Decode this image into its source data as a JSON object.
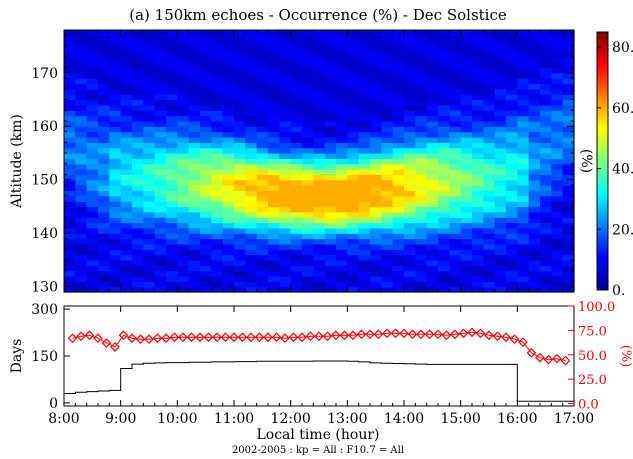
{
  "chart_data": [
    {
      "type": "heatmap",
      "title": "(a) 150km echoes - Occurrence (%) - Dec Solstice",
      "ylabel": "Altitude (km)",
      "xlim": [
        8.0,
        17.0
      ],
      "ylim": [
        129,
        178
      ],
      "yticks": [
        "130",
        "140",
        "150",
        "160",
        "170"
      ],
      "colorbar": {
        "label": "(%)",
        "range": [
          0,
          85
        ],
        "tick_values": [
          0,
          20,
          40,
          60,
          80
        ],
        "tick_labels": [
          "0.",
          "20.",
          "40.",
          "60.",
          "80."
        ],
        "colormap": "jet"
      },
      "cells": {
        "x_start": 8.0,
        "x_step": 0.2,
        "y_start": 129,
        "y_step": 1,
        "peak_hour": 12.9,
        "peak_altitude_km": 149.5,
        "peak_percent": 50
      }
    },
    {
      "type": "line",
      "ylabel_left": "Days",
      "ylabel_right": "(%)",
      "xlabel": "Local time (hour)",
      "xlim": [
        8.0,
        17.0
      ],
      "ylim_left": [
        -10,
        310
      ],
      "ylim_right": [
        -2.5,
        100
      ],
      "xticks": [
        "8:00",
        "9:00",
        "10:00",
        "11:00",
        "12:00",
        "13:00",
        "14:00",
        "15:00",
        "16:00",
        "17:00"
      ],
      "yticks_left": [
        "0",
        "150",
        "300"
      ],
      "yticks_right": [
        "0.0",
        "25.0",
        "50.0",
        "75.0",
        "100.0"
      ],
      "series": [
        {
          "color": "#000000",
          "step_x": [
            8.0,
            8.2,
            8.4,
            8.6,
            8.8,
            9.0,
            9.2,
            9.4,
            9.6,
            9.8,
            10.0,
            10.2,
            10.4,
            10.6,
            10.8,
            11.0,
            11.2,
            11.4,
            11.6,
            11.8,
            12.0,
            12.2,
            12.4,
            12.6,
            12.8,
            13.0,
            13.2,
            13.4,
            13.6,
            13.8,
            14.0,
            14.2,
            14.4,
            14.6,
            14.8,
            15.0,
            15.2,
            15.4,
            15.6,
            15.8,
            16.0,
            17.0
          ],
          "values": [
            30,
            34,
            36,
            38,
            40,
            110,
            124,
            127,
            128,
            129,
            129,
            130,
            130,
            131,
            131,
            132,
            132,
            133,
            133,
            133,
            133,
            133,
            134,
            134,
            134,
            133,
            131,
            128,
            127,
            126,
            125,
            124,
            123,
            123,
            123,
            123,
            123,
            123,
            123,
            123,
            5,
            5
          ]
        },
        {
          "color": "#ff0000",
          "marker": "diamond",
          "x": [
            8.15,
            8.3,
            8.45,
            8.6,
            8.75,
            8.9,
            9.05,
            9.2,
            9.35,
            9.5,
            9.65,
            9.8,
            9.95,
            10.1,
            10.25,
            10.4,
            10.55,
            10.7,
            10.85,
            11.0,
            11.15,
            11.3,
            11.45,
            11.6,
            11.75,
            11.9,
            12.05,
            12.2,
            12.35,
            12.5,
            12.65,
            12.8,
            12.95,
            13.1,
            13.25,
            13.4,
            13.55,
            13.7,
            13.85,
            14.0,
            14.15,
            14.3,
            14.45,
            14.6,
            14.75,
            14.9,
            15.05,
            15.2,
            15.35,
            15.5,
            15.65,
            15.8,
            15.95,
            16.1,
            16.25,
            16.4,
            16.55,
            16.7,
            16.85
          ],
          "values": [
            67,
            69,
            70,
            67,
            62,
            58,
            70,
            67,
            66,
            66,
            67,
            67,
            68,
            68,
            68,
            68,
            68,
            68,
            68,
            68,
            68,
            68,
            68,
            68,
            68,
            67,
            68,
            68,
            69,
            69,
            69,
            70,
            70,
            70,
            71,
            71,
            71,
            72,
            72,
            72,
            71,
            71,
            71,
            71,
            70,
            71,
            72,
            73,
            72,
            70,
            69,
            68,
            66,
            63,
            52,
            47,
            45,
            46,
            44
          ]
        }
      ]
    }
  ],
  "footnote": "2002-2005  :  kp = All  :  F10.7 = All"
}
